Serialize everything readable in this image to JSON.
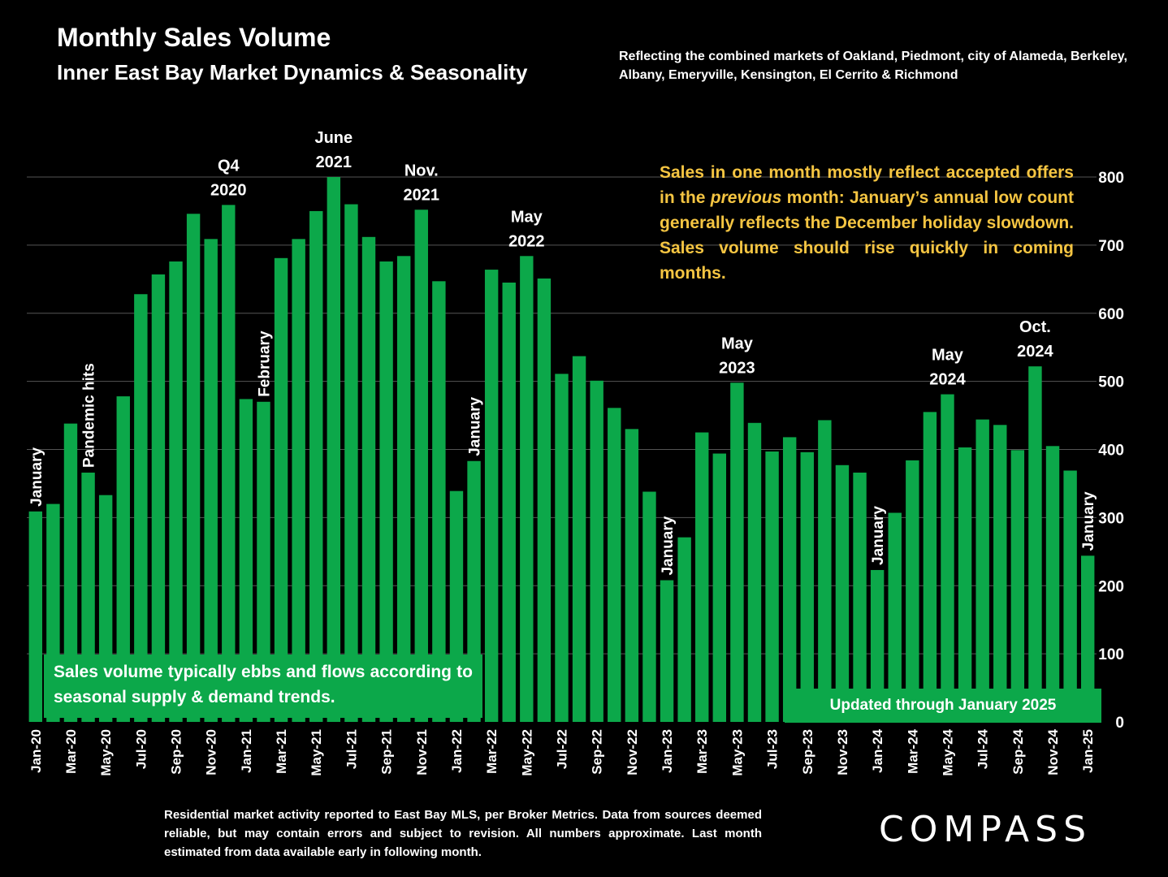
{
  "header": {
    "title": "Monthly Sales Volume",
    "subtitle": "Inner East Bay Market Dynamics & Seasonality",
    "market_note": "Reflecting the combined markets of Oakland, Piedmont, city of Alameda, Berkeley, Albany, Emeryville, Kensington, El Cerrito & Richmond"
  },
  "callout": {
    "part1": "Sales in one month mostly reflect accepted offers in the ",
    "italic": "previous",
    "part2": " month: January’s annual low count generally reflects the December holiday slowdown. Sales volume should rise quickly in coming months."
  },
  "season_note": "Sales volume typically ebbs and flows according to seasonal supply & demand trends.",
  "updated_note": "Updated through January 2025",
  "footnote": "Residential market activity reported to East Bay MLS, per Broker Metrics. Data from sources deemed reliable, but may contain errors and subject to revision. All numbers approximate. Last month estimated from data available early in following month.",
  "logo": "COMPASS",
  "colors": {
    "bar": "#0ca84a",
    "callout_text": "#f5c542",
    "background": "#000000",
    "grid": "#555555"
  },
  "chart_data": {
    "type": "bar",
    "ylim": [
      0,
      800
    ],
    "yticks": [
      0,
      100,
      200,
      300,
      400,
      500,
      600,
      700,
      800
    ],
    "y_axis_side": "right",
    "grid": true,
    "x_tick_labels": [
      "Jan-20",
      "Mar-20",
      "May-20",
      "Jul-20",
      "Sep-20",
      "Nov-20",
      "Jan-21",
      "Mar-21",
      "May-21",
      "Jul-21",
      "Sep-21",
      "Nov-21",
      "Jan-22",
      "Mar-22",
      "May-22",
      "Jul-22",
      "Sep-22",
      "Nov-22",
      "Jan-23",
      "Mar-23",
      "May-23",
      "Jul-23",
      "Sep-23",
      "Nov-23",
      "Jan-24",
      "Mar-24",
      "May-24",
      "Jul-24",
      "Sep-24",
      "Nov-24",
      "Jan-25"
    ],
    "categories": [
      "Jan-20",
      "Feb-20",
      "Mar-20",
      "Apr-20",
      "May-20",
      "Jun-20",
      "Jul-20",
      "Aug-20",
      "Sep-20",
      "Oct-20",
      "Nov-20",
      "Dec-20",
      "Jan-21",
      "Feb-21",
      "Mar-21",
      "Apr-21",
      "May-21",
      "Jun-21",
      "Jul-21",
      "Aug-21",
      "Sep-21",
      "Oct-21",
      "Nov-21",
      "Dec-21",
      "Jan-22",
      "Feb-22",
      "Mar-22",
      "Apr-22",
      "May-22",
      "Jun-22",
      "Jul-22",
      "Aug-22",
      "Sep-22",
      "Oct-22",
      "Nov-22",
      "Dec-22",
      "Jan-23",
      "Feb-23",
      "Mar-23",
      "Apr-23",
      "May-23",
      "Jun-23",
      "Jul-23",
      "Aug-23",
      "Sep-23",
      "Oct-23",
      "Nov-23",
      "Dec-23",
      "Jan-24",
      "Feb-24",
      "Mar-24",
      "Apr-24",
      "May-24",
      "Jun-24",
      "Jul-24",
      "Aug-24",
      "Sep-24",
      "Oct-24",
      "Nov-24",
      "Dec-24",
      "Jan-25"
    ],
    "values": [
      309,
      320,
      438,
      366,
      333,
      478,
      628,
      657,
      676,
      746,
      709,
      759,
      474,
      470,
      681,
      709,
      750,
      800,
      760,
      712,
      676,
      684,
      752,
      647,
      339,
      383,
      664,
      645,
      684,
      651,
      511,
      537,
      501,
      461,
      430,
      338,
      208,
      271,
      425,
      394,
      498,
      439,
      397,
      418,
      396,
      443,
      377,
      366,
      223,
      307,
      384,
      455,
      481,
      403,
      444,
      436,
      399,
      522,
      405,
      369,
      244
    ],
    "annotations": [
      {
        "category": "Jan-20",
        "text": "January",
        "vertical": true
      },
      {
        "category": "Apr-20",
        "text": "Pandemic hits",
        "vertical": true
      },
      {
        "category": "Dec-20",
        "text": "Q4 2020",
        "vertical": false,
        "lines": [
          "Q4",
          "2020"
        ]
      },
      {
        "category": "Feb-21",
        "text": "February",
        "vertical": true
      },
      {
        "category": "Jun-21",
        "text": "June 2021",
        "vertical": false,
        "lines": [
          "June",
          "2021"
        ]
      },
      {
        "category": "Nov-21",
        "text": "Nov. 2021",
        "vertical": false,
        "lines": [
          "Nov.",
          "2021"
        ]
      },
      {
        "category": "Feb-22",
        "text": "January",
        "vertical": true
      },
      {
        "category": "May-22",
        "text": "May 2022",
        "vertical": false,
        "lines": [
          "May",
          "2022"
        ]
      },
      {
        "category": "Jan-23",
        "text": "January",
        "vertical": true
      },
      {
        "category": "May-23",
        "text": "May 2023",
        "vertical": false,
        "lines": [
          "May",
          "2023"
        ]
      },
      {
        "category": "Jan-24",
        "text": "January",
        "vertical": true
      },
      {
        "category": "May-24",
        "text": "May 2024",
        "vertical": false,
        "lines": [
          "May",
          "2024"
        ]
      },
      {
        "category": "Oct-24",
        "text": "Oct. 2024",
        "vertical": false,
        "lines": [
          "Oct.",
          "2024"
        ]
      },
      {
        "category": "Jan-25",
        "text": "January",
        "vertical": true
      }
    ]
  }
}
